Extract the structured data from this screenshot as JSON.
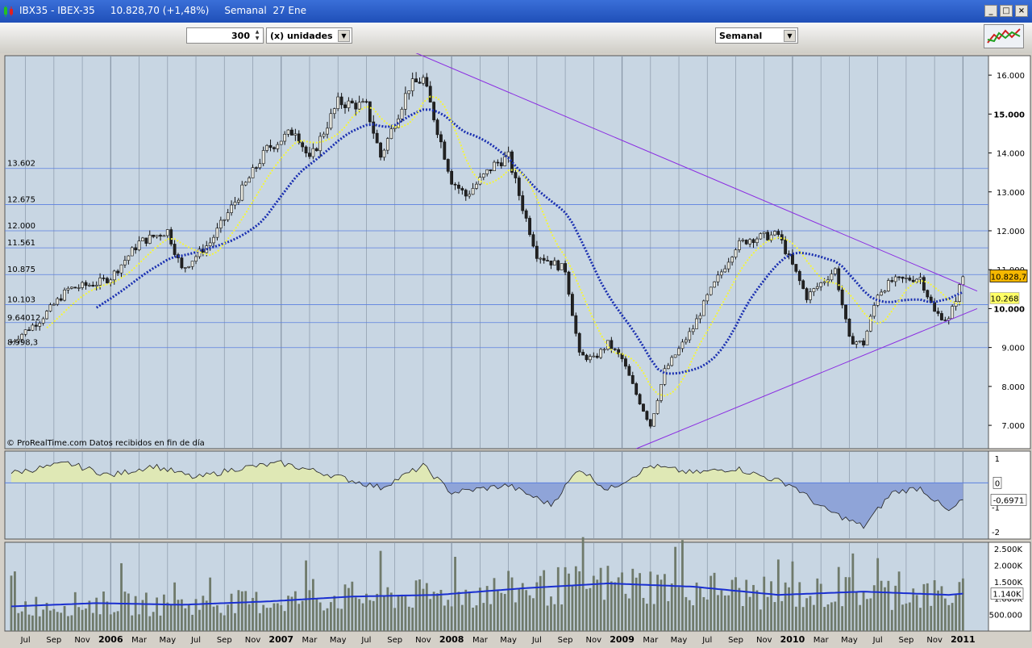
{
  "window": {
    "title": "IBX35 - IBEX-35     10.828,70 (+1,48%)     Semanal  27 Ene"
  },
  "toolbar": {
    "quantity_value": "300",
    "units_label": "(x) unidades",
    "period_label": "Semanal"
  },
  "chart_data": {
    "type": "candlestick",
    "instrument": "IBEX-35",
    "timeframe": "Semanal",
    "last_value_label": "10.828,7",
    "ma_value_label": "10.268",
    "source_note": "© ProRealTime.com  Datos recibidos en fin de día",
    "y_axis": {
      "range": [
        6400,
        16500
      ],
      "ticks": [
        "16.000",
        "15.000",
        "14.000",
        "13.000",
        "12.000",
        "11.000",
        "10.000",
        "9.000",
        "8.000",
        "7.000"
      ],
      "tick_values": [
        16000,
        15000,
        14000,
        13000,
        12000,
        11000,
        10000,
        9000,
        8000,
        7000
      ]
    },
    "horizontal_levels": [
      {
        "label": "13.602",
        "value": 13602
      },
      {
        "label": "12.675",
        "value": 12675
      },
      {
        "label": "12.000",
        "value": 12000
      },
      {
        "label": "11.561",
        "value": 11561
      },
      {
        "label": "10.875",
        "value": 10875
      },
      {
        "label": "10.103",
        "value": 10103
      },
      {
        "label": "9.64012",
        "value": 9640
      },
      {
        "label": "8.998,3",
        "value": 8998
      }
    ],
    "x_axis": {
      "labels": [
        "Jul",
        "Sep",
        "Nov",
        "2006",
        "Mar",
        "May",
        "Jul",
        "Sep",
        "Nov",
        "2007",
        "Mar",
        "May",
        "Jul",
        "Sep",
        "Nov",
        "2008",
        "Mar",
        "May",
        "Jul",
        "Sep",
        "Nov",
        "2009",
        "Mar",
        "May",
        "Jul",
        "Sep",
        "Nov",
        "2010",
        "Mar",
        "May",
        "Jul",
        "Sep",
        "Nov",
        "2011"
      ],
      "year_labels": [
        "2006",
        "2007",
        "2008",
        "2009",
        "2010",
        "2011"
      ],
      "start": "2005-06",
      "end": "2011-02"
    },
    "price_path": [
      {
        "t": "2005-06",
        "close": 9150
      },
      {
        "t": "2005-08",
        "close": 9700
      },
      {
        "t": "2005-10",
        "close": 10500
      },
      {
        "t": "2005-12",
        "close": 10650
      },
      {
        "t": "2006-01",
        "close": 10800
      },
      {
        "t": "2006-03",
        "close": 11700
      },
      {
        "t": "2006-05",
        "close": 12000
      },
      {
        "t": "2006-06",
        "close": 11000
      },
      {
        "t": "2006-08",
        "close": 11700
      },
      {
        "t": "2006-10",
        "close": 12900
      },
      {
        "t": "2006-12",
        "close": 14100
      },
      {
        "t": "2007-02",
        "close": 14600
      },
      {
        "t": "2007-03",
        "close": 13800
      },
      {
        "t": "2007-05",
        "close": 15300
      },
      {
        "t": "2007-07",
        "close": 15200
      },
      {
        "t": "2007-08",
        "close": 13900
      },
      {
        "t": "2007-10",
        "close": 15700
      },
      {
        "t": "2007-11",
        "close": 15900
      },
      {
        "t": "2008-01",
        "close": 13300
      },
      {
        "t": "2008-02",
        "close": 12900
      },
      {
        "t": "2008-04",
        "close": 13700
      },
      {
        "t": "2008-05",
        "close": 13900
      },
      {
        "t": "2008-06",
        "close": 12600
      },
      {
        "t": "2008-07",
        "close": 11400
      },
      {
        "t": "2008-09",
        "close": 11000
      },
      {
        "t": "2008-10",
        "close": 8800
      },
      {
        "t": "2008-11",
        "close": 8700
      },
      {
        "t": "2008-12",
        "close": 9100
      },
      {
        "t": "2009-01",
        "close": 8700
      },
      {
        "t": "2009-02",
        "close": 7800
      },
      {
        "t": "2009-03",
        "close": 7000
      },
      {
        "t": "2009-04",
        "close": 8400
      },
      {
        "t": "2009-06",
        "close": 9500
      },
      {
        "t": "2009-07",
        "close": 10300
      },
      {
        "t": "2009-09",
        "close": 11600
      },
      {
        "t": "2009-10",
        "close": 11800
      },
      {
        "t": "2009-12",
        "close": 11900
      },
      {
        "t": "2010-01",
        "close": 11100
      },
      {
        "t": "2010-02",
        "close": 10300
      },
      {
        "t": "2010-04",
        "close": 11000
      },
      {
        "t": "2010-05",
        "close": 9200
      },
      {
        "t": "2010-06",
        "close": 9100
      },
      {
        "t": "2010-07",
        "close": 10400
      },
      {
        "t": "2010-08",
        "close": 10700
      },
      {
        "t": "2010-10",
        "close": 10800
      },
      {
        "t": "2010-11",
        "close": 9900
      },
      {
        "t": "2010-12",
        "close": 9700
      },
      {
        "t": "2011-01",
        "close": 10829
      }
    ],
    "moving_averages": [
      {
        "name": "short",
        "color": "#f5f53a",
        "style": "dotted"
      },
      {
        "name": "long",
        "color": "#1a2fb0",
        "style": "dotted"
      }
    ],
    "trendlines": [
      {
        "color": "#8a2be2",
        "from": {
          "t": "2007-09",
          "value": 16800
        },
        "to": {
          "t": "2011-02",
          "value": 10450
        }
      },
      {
        "color": "#8a2be2",
        "from": {
          "t": "2009-02",
          "value": 6400
        },
        "to": {
          "t": "2011-02",
          "value": 10000
        }
      }
    ],
    "oscillator": {
      "ticks": [
        "1",
        "0",
        "-1",
        "-2"
      ],
      "tick_values": [
        1,
        0,
        -1,
        -2
      ],
      "range": [
        -2.3,
        1.3
      ],
      "last_label": "-0,6971",
      "zero_label": "0",
      "path": [
        {
          "t": "2005-06",
          "value": 0.4
        },
        {
          "t": "2005-10",
          "value": 0.8
        },
        {
          "t": "2006-01",
          "value": 0.3
        },
        {
          "t": "2006-04",
          "value": 0.7
        },
        {
          "t": "2006-07",
          "value": 0.2
        },
        {
          "t": "2006-10",
          "value": 0.6
        },
        {
          "t": "2007-01",
          "value": 0.8
        },
        {
          "t": "2007-04",
          "value": 0.4
        },
        {
          "t": "2007-08",
          "value": -0.2
        },
        {
          "t": "2007-11",
          "value": 0.7
        },
        {
          "t": "2008-01",
          "value": -0.4
        },
        {
          "t": "2008-05",
          "value": -0.1
        },
        {
          "t": "2008-08",
          "value": -0.9
        },
        {
          "t": "2008-10",
          "value": 0.6
        },
        {
          "t": "2008-12",
          "value": -0.3
        },
        {
          "t": "2009-03",
          "value": 0.7
        },
        {
          "t": "2009-06",
          "value": 0.4
        },
        {
          "t": "2009-09",
          "value": 0.6
        },
        {
          "t": "2010-01",
          "value": -0.1
        },
        {
          "t": "2010-03",
          "value": -1.0
        },
        {
          "t": "2010-06",
          "value": -1.8
        },
        {
          "t": "2010-08",
          "value": -0.4
        },
        {
          "t": "2010-10",
          "value": -0.2
        },
        {
          "t": "2010-12",
          "value": -1.2
        },
        {
          "t": "2011-01",
          "value": -0.7
        }
      ]
    },
    "volume": {
      "ticks": [
        "2.500K",
        "2.000K",
        "1.500K",
        "1.000K",
        "500.000"
      ],
      "tick_values": [
        2500,
        2000,
        1500,
        1000,
        500
      ],
      "range": [
        0,
        2700
      ],
      "avg_label": "1.140K",
      "path": [
        {
          "t": "2005-06",
          "value": 750
        },
        {
          "t": "2005-12",
          "value": 850
        },
        {
          "t": "2006-06",
          "value": 800
        },
        {
          "t": "2006-12",
          "value": 900
        },
        {
          "t": "2007-06",
          "value": 1050
        },
        {
          "t": "2007-12",
          "value": 1100
        },
        {
          "t": "2008-06",
          "value": 1300
        },
        {
          "t": "2008-12",
          "value": 1450
        },
        {
          "t": "2009-06",
          "value": 1350
        },
        {
          "t": "2009-12",
          "value": 1100
        },
        {
          "t": "2010-06",
          "value": 1200
        },
        {
          "t": "2010-12",
          "value": 1100
        },
        {
          "t": "2011-01",
          "value": 1140
        }
      ]
    }
  },
  "colors": {
    "plot_bg": "#c8d6e3",
    "grid_h": "#5b7fe0",
    "grid_v": "#8a98a8",
    "osc_pos": "#dfe8b5",
    "osc_neg": "#8fa4d8",
    "vol_bar": "#6f7a6b",
    "vol_avg": "#1a2fd0",
    "last_price_tag": "#f5b800"
  }
}
